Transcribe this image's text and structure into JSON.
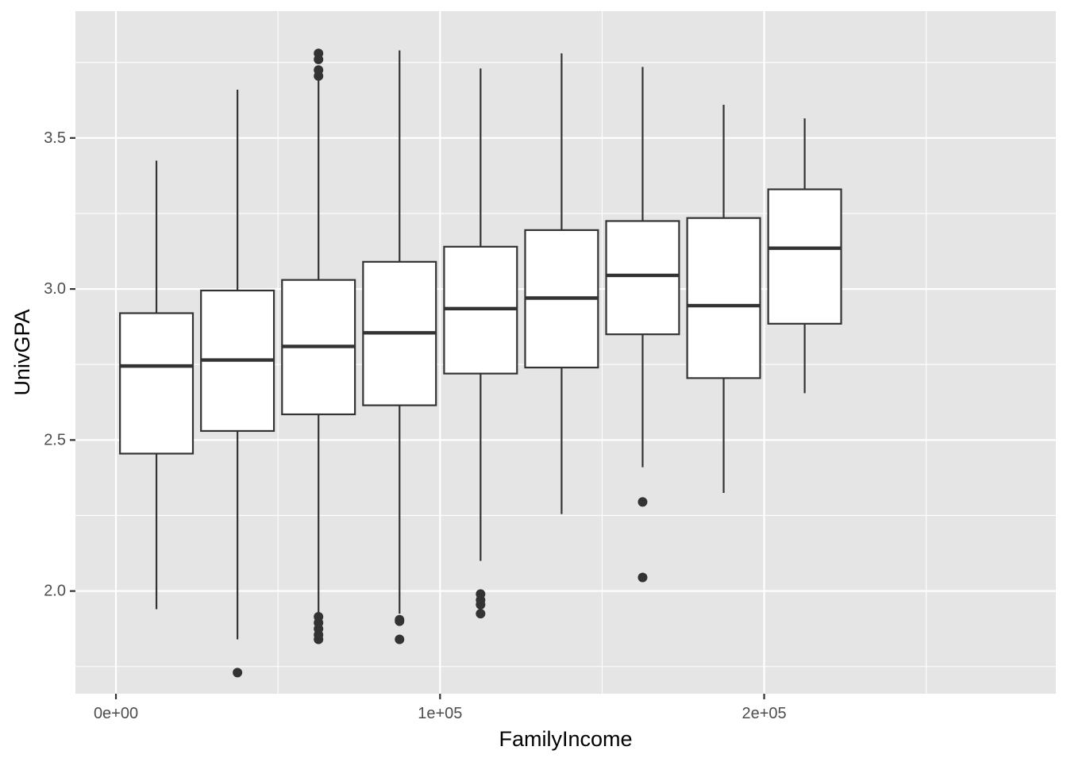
{
  "chart_data": {
    "type": "boxplot",
    "xlabel": "FamilyIncome",
    "ylabel": "UnivGPA",
    "xlim": [
      -12500,
      290000
    ],
    "ylim": [
      1.66,
      3.92
    ],
    "x_ticks": [
      0,
      100000,
      200000
    ],
    "x_tick_labels": [
      "0e+00",
      "1e+05",
      "2e+05"
    ],
    "x_minor_ticks": [
      50000,
      150000,
      250000
    ],
    "y_ticks": [
      2.0,
      2.5,
      3.0,
      3.5
    ],
    "y_tick_labels": [
      "2.0",
      "2.5",
      "3.0",
      "3.5"
    ],
    "y_minor_ticks": [
      1.75,
      2.25,
      2.75,
      3.25,
      3.75
    ],
    "grid": true,
    "colors": {
      "panel_background": "#e5e5e5",
      "grid": "#ffffff",
      "box_fill": "#ffffff",
      "box_stroke": "#333333",
      "outlier": "#333333"
    },
    "box_width": 22500,
    "groups": [
      {
        "x": 12500,
        "lower_whisker": 1.94,
        "q1": 2.455,
        "median": 2.745,
        "q3": 2.92,
        "upper_whisker": 3.425,
        "outliers": []
      },
      {
        "x": 37500,
        "lower_whisker": 1.84,
        "q1": 2.53,
        "median": 2.765,
        "q3": 2.995,
        "upper_whisker": 3.66,
        "outliers": [
          1.73
        ]
      },
      {
        "x": 62500,
        "lower_whisker": 1.925,
        "q1": 2.585,
        "median": 2.81,
        "q3": 3.03,
        "upper_whisker": 3.695,
        "outliers": [
          1.84,
          1.855,
          1.875,
          1.895,
          1.915,
          3.705,
          3.725,
          3.76,
          3.78
        ]
      },
      {
        "x": 87500,
        "lower_whisker": 1.925,
        "q1": 2.615,
        "median": 2.855,
        "q3": 3.09,
        "upper_whisker": 3.79,
        "outliers": [
          1.84,
          1.9,
          1.905
        ]
      },
      {
        "x": 112500,
        "lower_whisker": 2.1,
        "q1": 2.72,
        "median": 2.935,
        "q3": 3.14,
        "upper_whisker": 3.73,
        "outliers": [
          1.925,
          1.955,
          1.97,
          1.99
        ]
      },
      {
        "x": 137500,
        "lower_whisker": 2.255,
        "q1": 2.74,
        "median": 2.97,
        "q3": 3.195,
        "upper_whisker": 3.78,
        "outliers": []
      },
      {
        "x": 162500,
        "lower_whisker": 2.41,
        "q1": 2.85,
        "median": 3.045,
        "q3": 3.225,
        "upper_whisker": 3.735,
        "outliers": [
          2.045,
          2.295
        ]
      },
      {
        "x": 187500,
        "lower_whisker": 2.325,
        "q1": 2.705,
        "median": 2.945,
        "q3": 3.235,
        "upper_whisker": 3.61,
        "outliers": []
      },
      {
        "x": 212500,
        "lower_whisker": 2.655,
        "q1": 2.885,
        "median": 3.135,
        "q3": 3.33,
        "upper_whisker": 3.565,
        "outliers": []
      }
    ]
  }
}
